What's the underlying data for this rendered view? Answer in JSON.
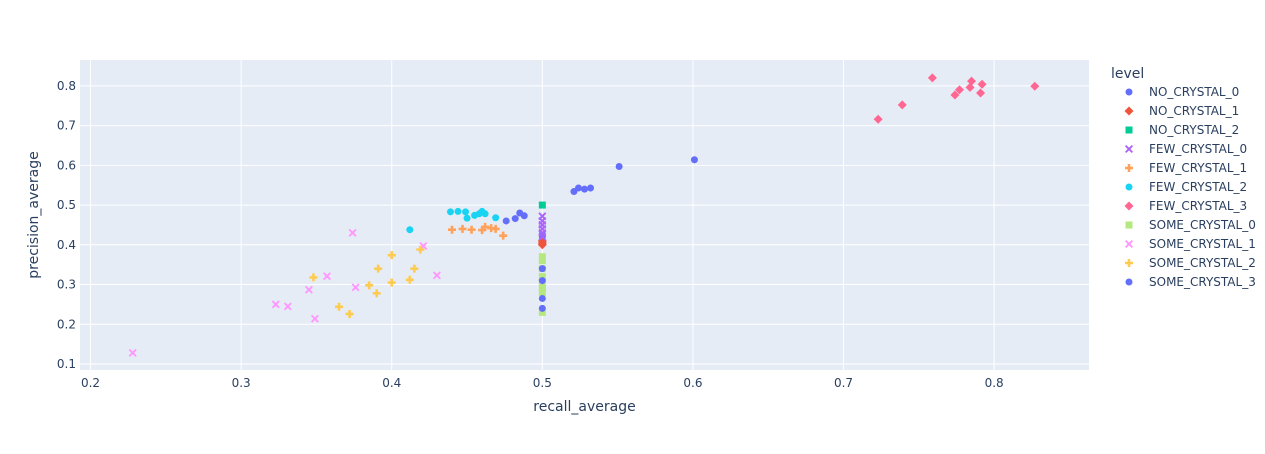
{
  "chart_data": {
    "type": "scatter",
    "xlabel": "recall_average",
    "ylabel": "precision_average",
    "xlim": [
      0.193,
      0.863
    ],
    "ylim": [
      0.085,
      0.865
    ],
    "xticks": [
      "0.2",
      "0.3",
      "0.4",
      "0.5",
      "0.6",
      "0.7",
      "0.8"
    ],
    "xtick_values": [
      0.2,
      0.3,
      0.4,
      0.5,
      0.6,
      0.7,
      0.8
    ],
    "yticks": [
      "0.1",
      "0.2",
      "0.3",
      "0.4",
      "0.5",
      "0.6",
      "0.7",
      "0.8"
    ],
    "ytick_values": [
      0.1,
      0.2,
      0.3,
      0.4,
      0.5,
      0.6,
      0.7,
      0.8
    ],
    "grid": true,
    "plot_background": "#e5ecf6",
    "legend": {
      "title": "level",
      "placement": "right"
    },
    "series": [
      {
        "name": "NO_CRYSTAL_0",
        "marker": "circle",
        "color": "#636efa",
        "points": [
          [
            0.5,
            0.425
          ],
          [
            0.5,
            0.42
          ]
        ]
      },
      {
        "name": "NO_CRYSTAL_1",
        "marker": "diamond",
        "color": "#EF553B",
        "points": [
          [
            0.5,
            0.405
          ],
          [
            0.5,
            0.41
          ],
          [
            0.5,
            0.4
          ]
        ]
      },
      {
        "name": "NO_CRYSTAL_2",
        "marker": "square",
        "color": "#00cc96",
        "points": [
          [
            0.5,
            0.5
          ]
        ]
      },
      {
        "name": "FEW_CRYSTAL_0",
        "marker": "x",
        "color": "#ab63fa",
        "points": [
          [
            0.5,
            0.472
          ],
          [
            0.5,
            0.46
          ],
          [
            0.5,
            0.45
          ],
          [
            0.5,
            0.44
          ],
          [
            0.5,
            0.43
          ],
          [
            0.5,
            0.42
          ]
        ]
      },
      {
        "name": "FEW_CRYSTAL_1",
        "marker": "cross",
        "color": "#FFA15A",
        "points": [
          [
            0.44,
            0.438
          ],
          [
            0.447,
            0.44
          ],
          [
            0.453,
            0.438
          ],
          [
            0.46,
            0.437
          ],
          [
            0.462,
            0.445
          ],
          [
            0.466,
            0.442
          ],
          [
            0.469,
            0.44
          ],
          [
            0.474,
            0.423
          ]
        ]
      },
      {
        "name": "FEW_CRYSTAL_2",
        "marker": "circle",
        "color": "#19d3f3",
        "points": [
          [
            0.412,
            0.438
          ],
          [
            0.439,
            0.483
          ],
          [
            0.444,
            0.484
          ],
          [
            0.449,
            0.483
          ],
          [
            0.45,
            0.467
          ],
          [
            0.455,
            0.474
          ],
          [
            0.458,
            0.478
          ],
          [
            0.46,
            0.484
          ],
          [
            0.462,
            0.478
          ],
          [
            0.469,
            0.468
          ]
        ]
      },
      {
        "name": "FEW_CRYSTAL_3",
        "marker": "diamond",
        "color": "#FF6692",
        "points": [
          [
            0.723,
            0.716
          ],
          [
            0.739,
            0.752
          ],
          [
            0.759,
            0.82
          ],
          [
            0.774,
            0.777
          ],
          [
            0.777,
            0.79
          ],
          [
            0.784,
            0.796
          ],
          [
            0.785,
            0.812
          ],
          [
            0.791,
            0.782
          ],
          [
            0.792,
            0.804
          ],
          [
            0.827,
            0.799
          ]
        ]
      },
      {
        "name": "SOME_CRYSTAL_0",
        "marker": "square",
        "color": "#B6E880",
        "points": [
          [
            0.5,
            0.37
          ],
          [
            0.5,
            0.36
          ],
          [
            0.5,
            0.34
          ],
          [
            0.5,
            0.32
          ],
          [
            0.5,
            0.3
          ],
          [
            0.5,
            0.29
          ],
          [
            0.5,
            0.28
          ],
          [
            0.5,
            0.23
          ]
        ]
      },
      {
        "name": "SOME_CRYSTAL_1",
        "marker": "x",
        "color": "#FF97FF",
        "points": [
          [
            0.228,
            0.128
          ],
          [
            0.323,
            0.25
          ],
          [
            0.331,
            0.245
          ],
          [
            0.345,
            0.287
          ],
          [
            0.349,
            0.214
          ],
          [
            0.357,
            0.321
          ],
          [
            0.374,
            0.43
          ],
          [
            0.376,
            0.293
          ],
          [
            0.421,
            0.397
          ],
          [
            0.43,
            0.323
          ]
        ]
      },
      {
        "name": "SOME_CRYSTAL_2",
        "marker": "cross",
        "color": "#FECB52",
        "points": [
          [
            0.348,
            0.318
          ],
          [
            0.365,
            0.244
          ],
          [
            0.372,
            0.226
          ],
          [
            0.385,
            0.298
          ],
          [
            0.39,
            0.278
          ],
          [
            0.391,
            0.34
          ],
          [
            0.4,
            0.305
          ],
          [
            0.4,
            0.374
          ],
          [
            0.412,
            0.312
          ],
          [
            0.415,
            0.34
          ],
          [
            0.419,
            0.388
          ]
        ]
      },
      {
        "name": "SOME_CRYSTAL_3",
        "marker": "circle",
        "color": "#636efa",
        "points": [
          [
            0.476,
            0.46
          ],
          [
            0.482,
            0.466
          ],
          [
            0.485,
            0.48
          ],
          [
            0.488,
            0.473
          ],
          [
            0.5,
            0.34
          ],
          [
            0.5,
            0.31
          ],
          [
            0.5,
            0.265
          ],
          [
            0.5,
            0.24
          ],
          [
            0.521,
            0.534
          ],
          [
            0.524,
            0.543
          ],
          [
            0.528,
            0.54
          ],
          [
            0.532,
            0.543
          ],
          [
            0.551,
            0.597
          ],
          [
            0.601,
            0.614
          ]
        ]
      }
    ]
  }
}
